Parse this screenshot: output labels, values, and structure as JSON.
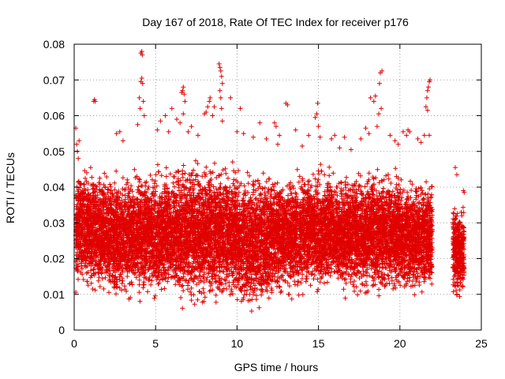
{
  "chart_data": {
    "type": "scatter",
    "title": "Day 167 of 2018, Rate Of TEC Index for receiver p176",
    "xlabel": "GPS time / hours",
    "ylabel": "ROTI / TECUs",
    "xlim": [
      0,
      25
    ],
    "ylim": [
      0,
      0.08
    ],
    "xticks": [
      0,
      5,
      10,
      15,
      20,
      25
    ],
    "yticks": [
      0,
      0.01,
      0.02,
      0.03,
      0.04,
      0.05,
      0.06,
      0.07,
      0.08
    ],
    "xtick_labels": [
      "0",
      "5",
      "10",
      "15",
      "20",
      "25"
    ],
    "ytick_labels": [
      "0",
      "0.01",
      "0.02",
      "0.03",
      "0.04",
      "0.05",
      "0.06",
      "0.07",
      "0.08"
    ],
    "grid": true,
    "marker": "plus",
    "marker_color": "#e00000",
    "data_gap_hours": [
      22.0,
      23.2
    ],
    "points": [
      [
        0.1,
        0.0565
      ],
      [
        0.15,
        0.052
      ],
      [
        0.2,
        0.05
      ],
      [
        0.3,
        0.053
      ],
      [
        0.25,
        0.048
      ],
      [
        1.2,
        0.064
      ],
      [
        1.25,
        0.0645
      ],
      [
        1.3,
        0.064
      ],
      [
        2.6,
        0.055
      ],
      [
        2.8,
        0.0555
      ],
      [
        3.0,
        0.053
      ],
      [
        3.9,
        0.0575
      ],
      [
        4.05,
        0.062
      ],
      [
        4.1,
        0.0695
      ],
      [
        4.15,
        0.0705
      ],
      [
        4.2,
        0.069
      ],
      [
        4.25,
        0.064
      ],
      [
        4.1,
        0.0775
      ],
      [
        4.15,
        0.078
      ],
      [
        4.18,
        0.077
      ],
      [
        4.0,
        0.065
      ],
      [
        4.3,
        0.06
      ],
      [
        5.1,
        0.056
      ],
      [
        5.3,
        0.0585
      ],
      [
        5.6,
        0.06
      ],
      [
        5.8,
        0.0555
      ],
      [
        6.0,
        0.062
      ],
      [
        6.3,
        0.059
      ],
      [
        6.5,
        0.058
      ],
      [
        6.6,
        0.0665
      ],
      [
        6.65,
        0.067
      ],
      [
        6.7,
        0.068
      ],
      [
        6.75,
        0.066
      ],
      [
        6.8,
        0.064
      ],
      [
        6.7,
        0.0605
      ],
      [
        7.0,
        0.0555
      ],
      [
        7.2,
        0.057
      ],
      [
        7.6,
        0.0545
      ],
      [
        8.0,
        0.0605
      ],
      [
        8.1,
        0.061
      ],
      [
        8.2,
        0.0625
      ],
      [
        8.3,
        0.064
      ],
      [
        8.35,
        0.065
      ],
      [
        8.5,
        0.06
      ],
      [
        8.6,
        0.0625
      ],
      [
        8.9,
        0.0745
      ],
      [
        8.95,
        0.0735
      ],
      [
        9.0,
        0.0725
      ],
      [
        9.05,
        0.071
      ],
      [
        9.1,
        0.069
      ],
      [
        8.95,
        0.067
      ],
      [
        9.0,
        0.065
      ],
      [
        9.05,
        0.062
      ],
      [
        9.1,
        0.0585
      ],
      [
        9.6,
        0.065
      ],
      [
        10.0,
        0.0555
      ],
      [
        10.2,
        0.062
      ],
      [
        10.4,
        0.055
      ],
      [
        11.0,
        0.054
      ],
      [
        11.4,
        0.058
      ],
      [
        11.8,
        0.0535
      ],
      [
        12.3,
        0.058
      ],
      [
        12.4,
        0.057
      ],
      [
        12.5,
        0.052
      ],
      [
        12.6,
        0.0545
      ],
      [
        13.0,
        0.0635
      ],
      [
        13.1,
        0.063
      ],
      [
        13.6,
        0.056
      ],
      [
        14.0,
        0.0515
      ],
      [
        14.4,
        0.0545
      ],
      [
        14.8,
        0.0595
      ],
      [
        14.9,
        0.0605
      ],
      [
        14.95,
        0.0635
      ],
      [
        15.0,
        0.057
      ],
      [
        15.1,
        0.054
      ],
      [
        15.8,
        0.0535
      ],
      [
        16.0,
        0.0545
      ],
      [
        16.3,
        0.051
      ],
      [
        16.6,
        0.054
      ],
      [
        17.0,
        0.0505
      ],
      [
        17.6,
        0.0535
      ],
      [
        17.9,
        0.0565
      ],
      [
        18.1,
        0.055
      ],
      [
        18.2,
        0.065
      ],
      [
        18.4,
        0.064
      ],
      [
        18.5,
        0.0655
      ],
      [
        18.6,
        0.057
      ],
      [
        18.7,
        0.0605
      ],
      [
        18.75,
        0.069
      ],
      [
        18.8,
        0.072
      ],
      [
        18.9,
        0.0725
      ],
      [
        18.85,
        0.062
      ],
      [
        19.4,
        0.0545
      ],
      [
        19.7,
        0.053
      ],
      [
        19.9,
        0.052
      ],
      [
        20.2,
        0.0555
      ],
      [
        20.4,
        0.0545
      ],
      [
        20.5,
        0.056
      ],
      [
        20.6,
        0.0555
      ],
      [
        21.1,
        0.0535
      ],
      [
        21.3,
        0.0525
      ],
      [
        21.5,
        0.0545
      ],
      [
        21.6,
        0.0625
      ],
      [
        21.65,
        0.065
      ],
      [
        21.7,
        0.067
      ],
      [
        21.75,
        0.068
      ],
      [
        21.8,
        0.0695
      ],
      [
        21.85,
        0.07
      ],
      [
        21.7,
        0.0615
      ],
      [
        21.8,
        0.0545
      ],
      [
        23.4,
        0.0455
      ],
      [
        23.5,
        0.0435
      ],
      [
        23.9,
        0.039
      ],
      [
        23.95,
        0.0385
      ]
    ],
    "bands": [
      {
        "x0": 0.1,
        "x1": 2.0,
        "ymin": 0.0085,
        "ymax": 0.047
      },
      {
        "x0": 2.0,
        "x1": 4.0,
        "ymin": 0.007,
        "ymax": 0.046
      },
      {
        "x0": 4.0,
        "x1": 6.0,
        "ymin": 0.006,
        "ymax": 0.048
      },
      {
        "x0": 6.0,
        "x1": 8.0,
        "ymin": 0.005,
        "ymax": 0.05
      },
      {
        "x0": 8.0,
        "x1": 10.0,
        "ymin": 0.006,
        "ymax": 0.049
      },
      {
        "x0": 10.0,
        "x1": 12.0,
        "ymin": 0.003,
        "ymax": 0.047
      },
      {
        "x0": 12.0,
        "x1": 14.0,
        "ymin": 0.007,
        "ymax": 0.046
      },
      {
        "x0": 14.0,
        "x1": 16.0,
        "ymin": 0.008,
        "ymax": 0.048
      },
      {
        "x0": 16.0,
        "x1": 18.0,
        "ymin": 0.008,
        "ymax": 0.046
      },
      {
        "x0": 18.0,
        "x1": 20.0,
        "ymin": 0.008,
        "ymax": 0.047
      },
      {
        "x0": 20.0,
        "x1": 22.0,
        "ymin": 0.008,
        "ymax": 0.044
      },
      {
        "x0": 23.25,
        "x1": 23.95,
        "ymin": 0.007,
        "ymax": 0.038
      }
    ]
  }
}
